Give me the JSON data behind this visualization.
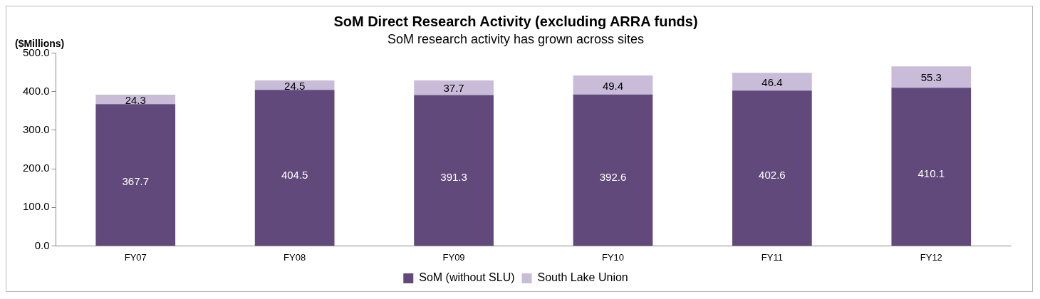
{
  "chart_data": {
    "type": "bar",
    "title": "SoM Direct Research Activity (excluding ARRA funds)",
    "subtitle": "SoM research activity has grown across sites",
    "ylabel": "($Millions)",
    "categories": [
      "FY07",
      "FY08",
      "FY09",
      "FY10",
      "FY11",
      "FY12"
    ],
    "series": [
      {
        "name": "SoM (without SLU)",
        "color": "#614a7b",
        "values": [
          367.7,
          404.5,
          391.3,
          392.6,
          402.6,
          410.1
        ]
      },
      {
        "name": "South Lake Union",
        "color": "#c8bcd9",
        "values": [
          24.3,
          24.5,
          37.7,
          49.4,
          46.4,
          55.3
        ]
      }
    ],
    "stacked": true,
    "data_labels": true,
    "legend": "bottom",
    "grid": false,
    "ylim": [
      0,
      500
    ],
    "yticks": [
      {
        "value": 0,
        "label": "0.0"
      },
      {
        "value": 100,
        "label": "100.0"
      },
      {
        "value": 200,
        "label": "200.0"
      },
      {
        "value": 300,
        "label": "300.0"
      },
      {
        "value": 400,
        "label": "400.0"
      },
      {
        "value": 500,
        "label": "500.0"
      }
    ]
  }
}
